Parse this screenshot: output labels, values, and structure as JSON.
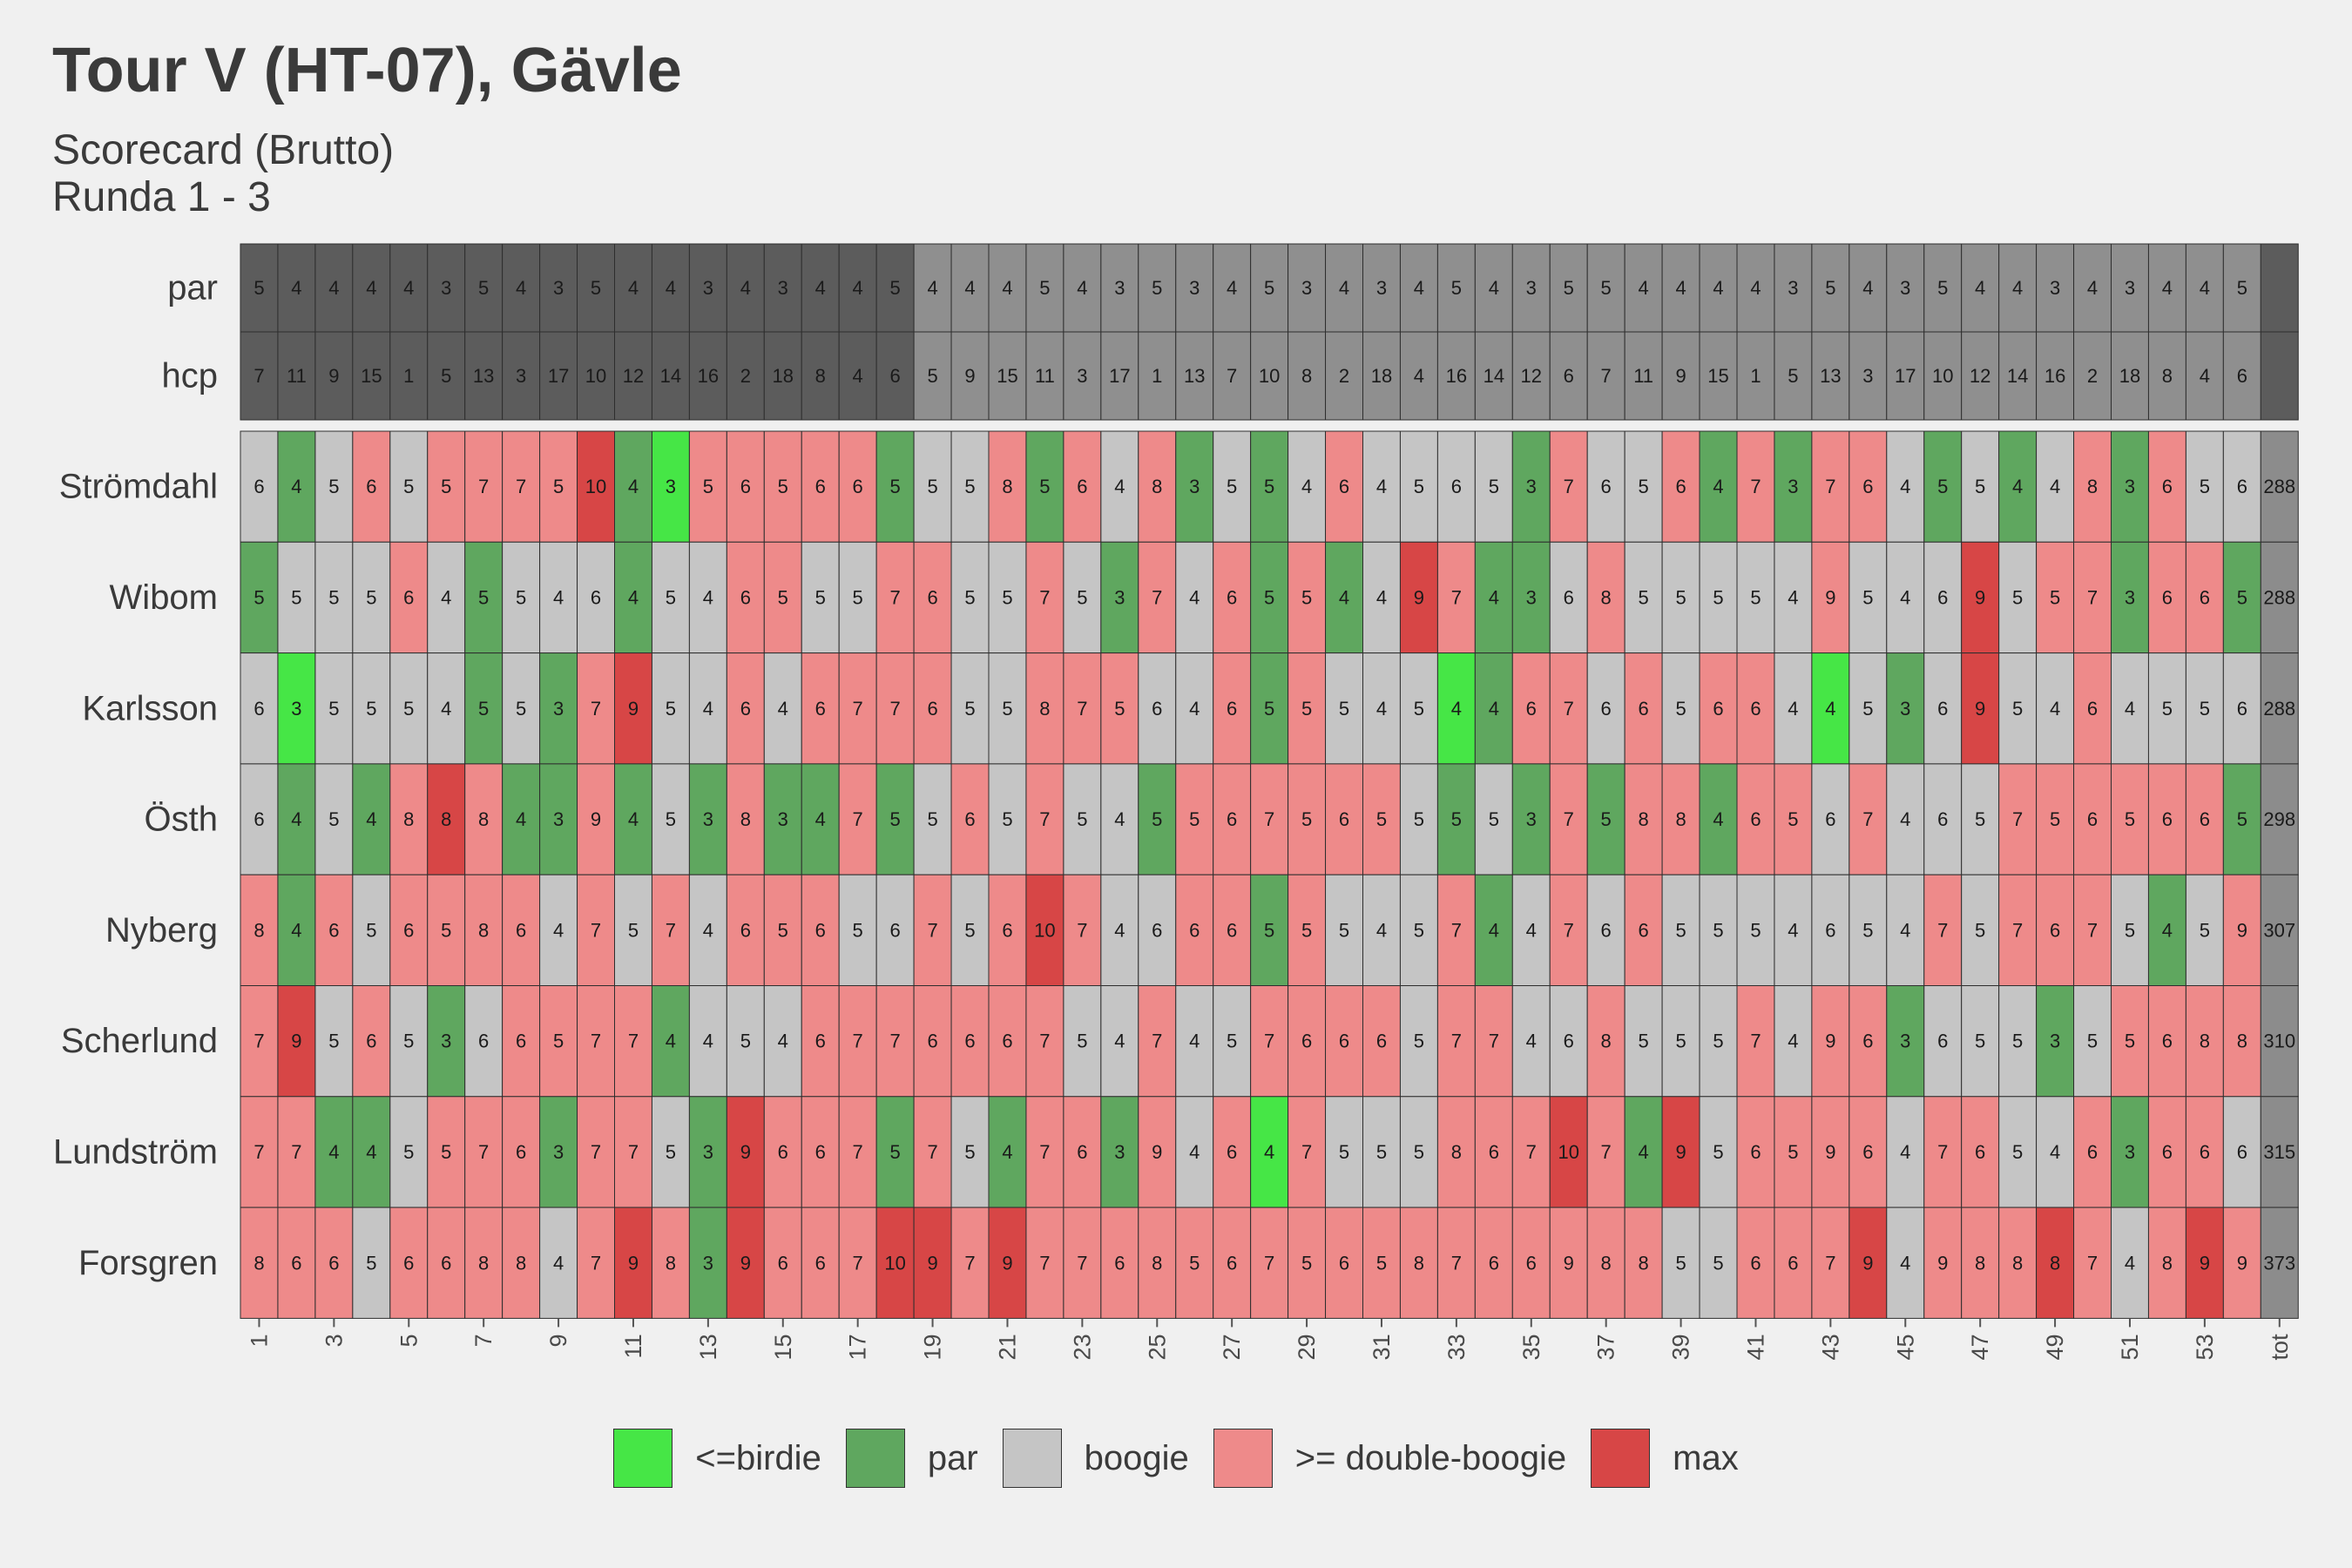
{
  "chart_data": {
    "type": "heatmap",
    "title": "Tour V (HT-07), Gävle",
    "subtitle_lines": [
      "Scorecard (Brutto)",
      "Runda 1 - 3"
    ],
    "x_tick_labels": [
      "1",
      "3",
      "5",
      "7",
      "9",
      "11",
      "13",
      "15",
      "17",
      "19",
      "21",
      "23",
      "25",
      "27",
      "29",
      "31",
      "33",
      "35",
      "37",
      "39",
      "41",
      "43",
      "45",
      "47",
      "49",
      "51",
      "53",
      "tot"
    ],
    "holes": 54,
    "info_rows": [
      {
        "label": "par",
        "values": [
          5,
          4,
          4,
          4,
          4,
          3,
          5,
          4,
          3,
          5,
          4,
          4,
          3,
          4,
          3,
          4,
          4,
          5,
          4,
          4,
          4,
          5,
          4,
          3,
          5,
          3,
          4,
          5,
          3,
          4,
          3,
          4,
          5,
          4,
          3,
          5,
          5,
          4,
          4,
          4,
          4,
          3,
          5,
          4,
          3,
          5,
          4,
          4,
          3,
          4,
          3,
          4,
          4,
          5
        ]
      },
      {
        "label": "hcp",
        "values": [
          7,
          11,
          9,
          15,
          1,
          5,
          13,
          3,
          17,
          10,
          12,
          14,
          16,
          2,
          18,
          8,
          4,
          6,
          5,
          9,
          15,
          11,
          3,
          17,
          1,
          13,
          7,
          10,
          8,
          2,
          18,
          4,
          16,
          14,
          12,
          6,
          7,
          11,
          9,
          15,
          1,
          5,
          13,
          3,
          17,
          10,
          12,
          14,
          16,
          2,
          18,
          8,
          4,
          6
        ]
      }
    ],
    "players": [
      {
        "name": "Strömdahl",
        "total": 288,
        "scores": [
          6,
          4,
          5,
          6,
          5,
          5,
          7,
          7,
          5,
          10,
          4,
          3,
          5,
          6,
          5,
          6,
          6,
          5,
          5,
          5,
          8,
          5,
          6,
          4,
          8,
          3,
          5,
          5,
          4,
          6,
          4,
          5,
          6,
          5,
          3,
          7,
          6,
          5,
          6,
          4,
          7,
          3,
          7,
          6,
          4,
          5,
          5,
          4,
          4,
          8,
          3,
          6,
          5,
          6
        ],
        "categories": [
          "B",
          "P",
          "B",
          "D",
          "B",
          "D",
          "D",
          "D",
          "D",
          "M",
          "P",
          "L",
          "D",
          "D",
          "D",
          "D",
          "D",
          "P",
          "B",
          "B",
          "D",
          "P",
          "D",
          "B",
          "D",
          "P",
          "B",
          "P",
          "B",
          "D",
          "B",
          "B",
          "B",
          "B",
          "P",
          "D",
          "B",
          "B",
          "D",
          "P",
          "D",
          "P",
          "D",
          "D",
          "B",
          "P",
          "B",
          "P",
          "B",
          "D",
          "P",
          "D",
          "B",
          "B"
        ]
      },
      {
        "name": "Wibom",
        "total": 288,
        "scores": [
          5,
          5,
          5,
          5,
          6,
          4,
          5,
          5,
          4,
          6,
          4,
          5,
          4,
          6,
          5,
          5,
          5,
          7,
          6,
          5,
          5,
          7,
          5,
          3,
          7,
          4,
          6,
          5,
          5,
          4,
          4,
          9,
          7,
          4,
          3,
          6,
          8,
          5,
          5,
          5,
          5,
          4,
          9,
          5,
          4,
          6,
          9,
          5,
          5,
          7,
          3,
          6,
          6,
          5
        ],
        "categories": [
          "P",
          "B",
          "B",
          "B",
          "D",
          "B",
          "P",
          "B",
          "B",
          "B",
          "P",
          "B",
          "B",
          "D",
          "D",
          "B",
          "B",
          "D",
          "D",
          "B",
          "B",
          "D",
          "B",
          "P",
          "D",
          "B",
          "D",
          "P",
          "D",
          "P",
          "B",
          "M",
          "D",
          "P",
          "P",
          "B",
          "D",
          "B",
          "B",
          "B",
          "B",
          "B",
          "D",
          "B",
          "B",
          "B",
          "M",
          "B",
          "D",
          "D",
          "P",
          "D",
          "D",
          "P"
        ]
      },
      {
        "name": "Karlsson",
        "total": 288,
        "scores": [
          6,
          3,
          5,
          5,
          5,
          4,
          5,
          5,
          3,
          7,
          9,
          5,
          4,
          6,
          4,
          6,
          7,
          7,
          6,
          5,
          5,
          8,
          7,
          5,
          6,
          4,
          6,
          5,
          5,
          5,
          4,
          5,
          4,
          4,
          6,
          7,
          6,
          6,
          5,
          6,
          6,
          4,
          4,
          5,
          3,
          6,
          9,
          5,
          4,
          6,
          4,
          5,
          5,
          6
        ],
        "categories": [
          "B",
          "L",
          "B",
          "B",
          "B",
          "B",
          "P",
          "B",
          "P",
          "D",
          "M",
          "B",
          "B",
          "D",
          "B",
          "D",
          "D",
          "D",
          "D",
          "B",
          "B",
          "D",
          "D",
          "D",
          "B",
          "B",
          "D",
          "P",
          "D",
          "B",
          "B",
          "B",
          "L",
          "P",
          "D",
          "D",
          "B",
          "D",
          "B",
          "D",
          "D",
          "B",
          "L",
          "B",
          "P",
          "B",
          "M",
          "B",
          "B",
          "D",
          "B",
          "B",
          "B",
          "B"
        ]
      },
      {
        "name": "Östh",
        "total": 298,
        "scores": [
          6,
          4,
          5,
          4,
          8,
          8,
          8,
          4,
          3,
          9,
          4,
          5,
          3,
          8,
          3,
          4,
          7,
          5,
          5,
          6,
          5,
          7,
          5,
          4,
          5,
          5,
          6,
          7,
          5,
          6,
          5,
          5,
          5,
          5,
          3,
          7,
          5,
          8,
          8,
          4,
          6,
          5,
          6,
          7,
          4,
          6,
          5,
          7,
          5,
          6,
          5,
          6,
          6,
          5
        ],
        "categories": [
          "B",
          "P",
          "B",
          "P",
          "D",
          "M",
          "D",
          "P",
          "P",
          "D",
          "P",
          "B",
          "P",
          "D",
          "P",
          "P",
          "D",
          "P",
          "B",
          "D",
          "B",
          "D",
          "B",
          "B",
          "P",
          "D",
          "D",
          "D",
          "D",
          "D",
          "D",
          "B",
          "P",
          "B",
          "P",
          "D",
          "P",
          "D",
          "D",
          "P",
          "D",
          "D",
          "B",
          "D",
          "B",
          "B",
          "B",
          "D",
          "D",
          "D",
          "D",
          "D",
          "D",
          "P"
        ]
      },
      {
        "name": "Nyberg",
        "total": 307,
        "scores": [
          8,
          4,
          6,
          5,
          6,
          5,
          8,
          6,
          4,
          7,
          5,
          7,
          4,
          6,
          5,
          6,
          5,
          6,
          7,
          5,
          6,
          10,
          7,
          4,
          6,
          6,
          6,
          5,
          5,
          5,
          4,
          5,
          7,
          4,
          4,
          7,
          6,
          6,
          5,
          5,
          5,
          4,
          6,
          5,
          4,
          7,
          5,
          7,
          6,
          7,
          5,
          4,
          5,
          9
        ],
        "categories": [
          "D",
          "P",
          "D",
          "B",
          "D",
          "D",
          "D",
          "D",
          "B",
          "D",
          "B",
          "D",
          "B",
          "D",
          "D",
          "D",
          "B",
          "B",
          "D",
          "B",
          "D",
          "M",
          "D",
          "B",
          "B",
          "D",
          "D",
          "P",
          "D",
          "B",
          "B",
          "B",
          "D",
          "P",
          "B",
          "D",
          "B",
          "D",
          "B",
          "B",
          "B",
          "B",
          "B",
          "B",
          "B",
          "D",
          "B",
          "D",
          "D",
          "D",
          "B",
          "P",
          "B",
          "D"
        ]
      },
      {
        "name": "Scherlund",
        "total": 310,
        "scores": [
          7,
          9,
          5,
          6,
          5,
          3,
          6,
          6,
          5,
          7,
          7,
          4,
          4,
          5,
          4,
          6,
          7,
          7,
          6,
          6,
          6,
          7,
          5,
          4,
          7,
          4,
          5,
          7,
          6,
          6,
          6,
          5,
          7,
          7,
          4,
          6,
          8,
          5,
          5,
          5,
          7,
          4,
          9,
          6,
          3,
          6,
          5,
          5,
          3,
          5,
          5,
          6,
          8,
          8
        ],
        "categories": [
          "D",
          "M",
          "B",
          "D",
          "B",
          "P",
          "B",
          "D",
          "D",
          "D",
          "D",
          "P",
          "B",
          "B",
          "B",
          "D",
          "D",
          "D",
          "D",
          "D",
          "D",
          "D",
          "B",
          "B",
          "D",
          "B",
          "B",
          "D",
          "D",
          "D",
          "D",
          "B",
          "D",
          "D",
          "B",
          "B",
          "D",
          "B",
          "B",
          "B",
          "D",
          "B",
          "D",
          "D",
          "P",
          "B",
          "B",
          "B",
          "P",
          "B",
          "D",
          "D",
          "D",
          "D"
        ]
      },
      {
        "name": "Lundström",
        "total": 315,
        "scores": [
          7,
          7,
          4,
          4,
          5,
          5,
          7,
          6,
          3,
          7,
          7,
          5,
          3,
          9,
          6,
          6,
          7,
          5,
          7,
          5,
          4,
          7,
          6,
          3,
          9,
          4,
          6,
          4,
          7,
          5,
          5,
          5,
          8,
          6,
          7,
          10,
          7,
          4,
          9,
          5,
          6,
          5,
          9,
          6,
          4,
          7,
          6,
          5,
          4,
          6,
          3,
          6,
          6,
          6
        ],
        "categories": [
          "D",
          "D",
          "P",
          "P",
          "B",
          "D",
          "D",
          "D",
          "P",
          "D",
          "D",
          "B",
          "P",
          "M",
          "D",
          "D",
          "D",
          "P",
          "D",
          "B",
          "P",
          "D",
          "D",
          "P",
          "D",
          "B",
          "D",
          "L",
          "D",
          "B",
          "B",
          "B",
          "D",
          "D",
          "D",
          "M",
          "D",
          "P",
          "M",
          "B",
          "D",
          "D",
          "D",
          "D",
          "B",
          "D",
          "D",
          "B",
          "B",
          "D",
          "P",
          "D",
          "D",
          "B"
        ]
      },
      {
        "name": "Forsgren",
        "total": 373,
        "scores": [
          8,
          6,
          6,
          5,
          6,
          6,
          8,
          8,
          4,
          7,
          9,
          8,
          3,
          9,
          6,
          6,
          7,
          10,
          9,
          7,
          9,
          7,
          7,
          6,
          8,
          5,
          6,
          7,
          5,
          6,
          5,
          8,
          7,
          6,
          6,
          9,
          8,
          8,
          5,
          5,
          6,
          6,
          7,
          9,
          4,
          9,
          8,
          8,
          8,
          7,
          4,
          8,
          9,
          9
        ],
        "categories": [
          "D",
          "D",
          "D",
          "B",
          "D",
          "D",
          "D",
          "D",
          "B",
          "D",
          "M",
          "D",
          "P",
          "M",
          "D",
          "D",
          "D",
          "M",
          "M",
          "D",
          "M",
          "D",
          "D",
          "D",
          "D",
          "D",
          "D",
          "D",
          "D",
          "D",
          "D",
          "D",
          "D",
          "D",
          "D",
          "D",
          "D",
          "D",
          "B",
          "B",
          "D",
          "D",
          "D",
          "M",
          "B",
          "D",
          "D",
          "D",
          "M",
          "D",
          "B",
          "D",
          "M",
          "D"
        ]
      }
    ],
    "legend": [
      {
        "key": "L",
        "label": "<=birdie",
        "color": "#46e646"
      },
      {
        "key": "P",
        "label": "par",
        "color": "#5fa75f"
      },
      {
        "key": "B",
        "label": "boogie",
        "color": "#c5c5c5"
      },
      {
        "key": "D",
        "label": ">= double-boogie",
        "color": "#ee8a8a"
      },
      {
        "key": "M",
        "label": "max",
        "color": "#d74646"
      }
    ],
    "info_colors": {
      "dark": "#5c5c5c",
      "light": "#8f8f8f",
      "total_info": "#5c5c5c",
      "total_player": "#8c8c8c"
    }
  }
}
